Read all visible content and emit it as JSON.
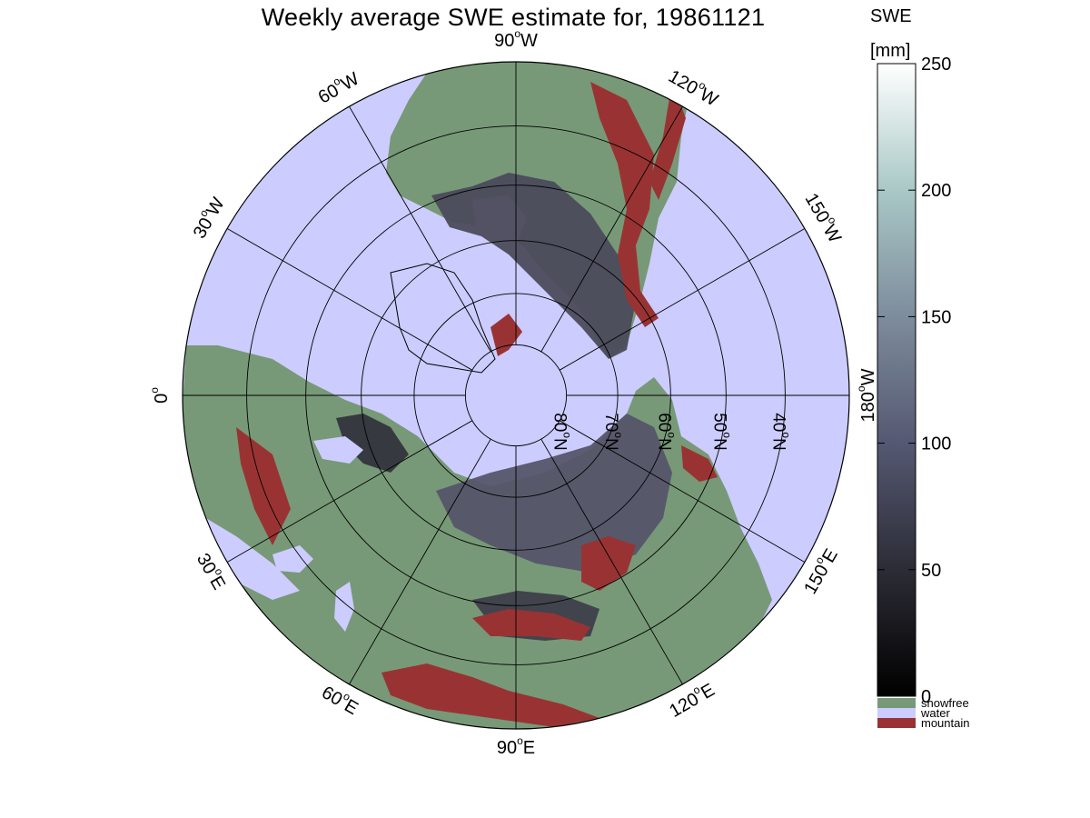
{
  "title": "Weekly average SWE estimate for, 19861121",
  "colors": {
    "water": "#ccccff",
    "snowfree": "#779977",
    "mountain": "#993333",
    "outline": "#000000"
  },
  "map": {
    "projection": "north-polar-stereographic",
    "longitude_labels": [
      {
        "id": "lon-90w",
        "num": "90",
        "dir": "W",
        "lon": -90
      },
      {
        "id": "lon-120w",
        "num": "120",
        "dir": "W",
        "lon": -120
      },
      {
        "id": "lon-150w",
        "num": "150",
        "dir": "W",
        "lon": -150
      },
      {
        "id": "lon-180w",
        "num": "180",
        "dir": "W",
        "lon": 180
      },
      {
        "id": "lon-150e",
        "num": "150",
        "dir": "E",
        "lon": 150
      },
      {
        "id": "lon-120e",
        "num": "120",
        "dir": "E",
        "lon": 120
      },
      {
        "id": "lon-90e",
        "num": "90",
        "dir": "E",
        "lon": 90
      },
      {
        "id": "lon-60e",
        "num": "60",
        "dir": "E",
        "lon": 60
      },
      {
        "id": "lon-30e",
        "num": "30",
        "dir": "E",
        "lon": 30
      },
      {
        "id": "lon-0",
        "num": "0",
        "dir": "",
        "lon": 0
      },
      {
        "id": "lon-30w",
        "num": "30",
        "dir": "W",
        "lon": -30
      },
      {
        "id": "lon-60w",
        "num": "60",
        "dir": "W",
        "lon": -60
      }
    ],
    "latitude_labels": [
      {
        "id": "lat-80n",
        "num": "80",
        "dir": "N",
        "lat": 80
      },
      {
        "id": "lat-70n",
        "num": "70",
        "dir": "N",
        "lat": 70
      },
      {
        "id": "lat-60n",
        "num": "60",
        "dir": "N",
        "lat": 60
      },
      {
        "id": "lat-50n",
        "num": "50",
        "dir": "N",
        "lat": 50
      },
      {
        "id": "lat-40n",
        "num": "40",
        "dir": "N",
        "lat": 40
      }
    ]
  },
  "colorbar": {
    "title": "SWE",
    "unit": "[mm]",
    "min": 0,
    "max": 250,
    "ticks": [
      0,
      50,
      100,
      150,
      200,
      250
    ],
    "tick_labels": [
      "0",
      "50",
      "100",
      "150",
      "200",
      "250"
    ],
    "categories": [
      {
        "label": "snowfree",
        "color": "#779977"
      },
      {
        "label": "water",
        "color": "#ccccff"
      },
      {
        "label": "mountain",
        "color": "#993333"
      }
    ]
  }
}
